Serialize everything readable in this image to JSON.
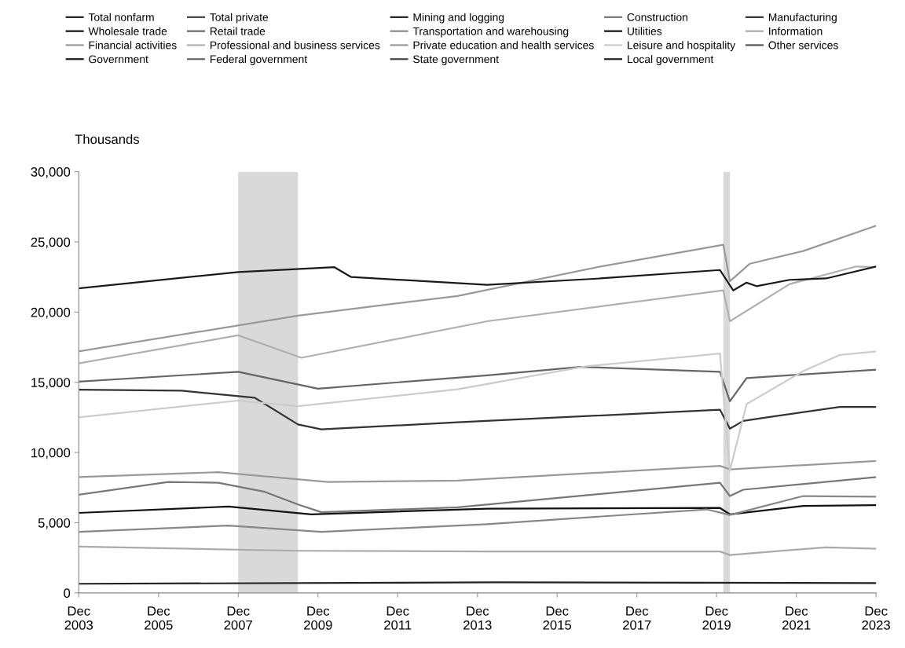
{
  "chart_data": {
    "type": "line",
    "ylabel": "Thousands",
    "xlim": [
      "2003-12",
      "2023-12"
    ],
    "xticks": [
      {
        "value": "2003-12",
        "label": "Dec\n2003"
      },
      {
        "value": "2005-12",
        "label": "Dec\n2005"
      },
      {
        "value": "2007-12",
        "label": "Dec\n2007"
      },
      {
        "value": "2009-12",
        "label": "Dec\n2009"
      },
      {
        "value": "2011-12",
        "label": "Dec\n2011"
      },
      {
        "value": "2013-12",
        "label": "Dec\n2013"
      },
      {
        "value": "2015-12",
        "label": "Dec\n2015"
      },
      {
        "value": "2017-12",
        "label": "Dec\n2017"
      },
      {
        "value": "2019-12",
        "label": "Dec\n2019"
      },
      {
        "value": "2021-12",
        "label": "Dec\n2021"
      },
      {
        "value": "2023-12",
        "label": "Dec\n2023"
      }
    ],
    "ylim": [
      0,
      30000
    ],
    "yticks": [
      {
        "value": 0,
        "label": "0"
      },
      {
        "value": 5000,
        "label": "5,000"
      },
      {
        "value": 10000,
        "label": "10,000"
      },
      {
        "value": 15000,
        "label": "15,000"
      },
      {
        "value": 20000,
        "label": "20,000"
      },
      {
        "value": 25000,
        "label": "25,000"
      },
      {
        "value": 30000,
        "label": "30,000"
      }
    ],
    "grid": false,
    "legend": "top",
    "bands": [
      {
        "axis": "x",
        "from": "2007-12",
        "to": "2009-06",
        "color": "#d9d9d9"
      },
      {
        "axis": "x",
        "from": "2020-02",
        "to": "2020-04",
        "color": "#d9d9d9"
      }
    ],
    "series": [
      {
        "name": "Total nonfarm",
        "color": "#222222"
      },
      {
        "name": "Total private",
        "color": "#444444"
      },
      {
        "name": "Mining and logging",
        "color": "#222222",
        "x": [
          "2003-12",
          "2014-06",
          "2023-12"
        ],
        "values": [
          650,
          750,
          700
        ]
      },
      {
        "name": "Construction",
        "color": "#777777",
        "x": [
          "2003-12",
          "2006-03",
          "2007-06",
          "2008-08",
          "2009-06",
          "2010-01",
          "2013-06",
          "2020-01",
          "2020-04",
          "2020-08",
          "2023-12"
        ],
        "values": [
          7000,
          7900,
          7850,
          7200,
          6300,
          5750,
          6100,
          7850,
          6900,
          7350,
          8250
        ]
      },
      {
        "name": "Manufacturing",
        "color": "#333333",
        "x": [
          "2003-12",
          "2006-07",
          "2008-05",
          "2009-06",
          "2010-01",
          "2013-06",
          "2020-01",
          "2020-04",
          "2020-08",
          "2021-06",
          "2023-01",
          "2023-12"
        ],
        "values": [
          14480,
          14400,
          13900,
          12000,
          11650,
          12150,
          13050,
          11700,
          12250,
          12600,
          13250,
          13250
        ]
      },
      {
        "name": "Wholesale trade",
        "color": "#111111",
        "x": [
          "2003-12",
          "2007-09",
          "2009-10",
          "2014-03",
          "2020-01",
          "2020-04",
          "2022-02",
          "2023-12"
        ],
        "values": [
          5700,
          6150,
          5600,
          6000,
          6050,
          5600,
          6200,
          6250
        ]
      },
      {
        "name": "Retail trade",
        "color": "#666666",
        "x": [
          "2003-12",
          "2007-12",
          "2009-12",
          "2014-03",
          "2016-07",
          "2020-01",
          "2020-04",
          "2020-09",
          "2023-12"
        ],
        "values": [
          15050,
          15750,
          14550,
          15500,
          16100,
          15750,
          13650,
          15300,
          15900
        ]
      },
      {
        "name": "Transportation and warehousing",
        "color": "#888888",
        "x": [
          "2003-12",
          "2007-09",
          "2010-01",
          "2014-03",
          "2019-09",
          "2020-04",
          "2022-02",
          "2023-12"
        ],
        "values": [
          4350,
          4800,
          4350,
          4900,
          5950,
          5550,
          6900,
          6850
        ]
      },
      {
        "name": "Utilities",
        "color": "#111111"
      },
      {
        "name": "Information",
        "color": "#aaaaaa",
        "x": [
          "2003-12",
          "2009-06",
          "2014-03",
          "2020-01",
          "2020-04",
          "2022-09",
          "2023-12"
        ],
        "values": [
          3300,
          3000,
          2950,
          2950,
          2700,
          3250,
          3150
        ]
      },
      {
        "name": "Financial activities",
        "color": "#999999",
        "x": [
          "2003-12",
          "2007-06",
          "2010-03",
          "2013-06",
          "2020-01",
          "2020-04",
          "2023-12"
        ],
        "values": [
          8250,
          8600,
          7900,
          8000,
          9050,
          8800,
          9400
        ]
      },
      {
        "name": "Professional and business services",
        "color": "#b0b0b0",
        "x": [
          "2003-12",
          "2007-12",
          "2009-07",
          "2014-03",
          "2020-02",
          "2020-04",
          "2021-10",
          "2023-06",
          "2023-12"
        ],
        "values": [
          16350,
          18350,
          16750,
          19350,
          21550,
          19350,
          22000,
          23250,
          23200
        ]
      },
      {
        "name": "Private education and health services",
        "color": "#999999",
        "x": [
          "2003-12",
          "2009-06",
          "2013-06",
          "2017-01",
          "2020-02",
          "2020-04",
          "2020-10",
          "2022-02",
          "2023-12"
        ],
        "values": [
          17200,
          19750,
          21150,
          23250,
          24800,
          22200,
          23450,
          24350,
          26150
        ]
      },
      {
        "name": "Leisure and hospitality",
        "color": "#cccccc",
        "x": [
          "2003-12",
          "2007-12",
          "2009-06",
          "2013-06",
          "2016-09",
          "2020-01",
          "2020-04",
          "2020-09",
          "2022-02",
          "2023-01",
          "2023-12"
        ],
        "values": [
          12500,
          13700,
          13300,
          14500,
          16150,
          17050,
          8700,
          13450,
          15800,
          16950,
          17200
        ]
      },
      {
        "name": "Other services",
        "color": "#555555"
      },
      {
        "name": "Government",
        "color": "#1a1a1a",
        "x": [
          "2003-12",
          "2007-12",
          "2010-05",
          "2010-10",
          "2014-03",
          "2017-01",
          "2020-01",
          "2020-05",
          "2020-09",
          "2020-12",
          "2021-10",
          "2022-09",
          "2023-12"
        ],
        "values": [
          21700,
          22850,
          23200,
          22500,
          21950,
          22400,
          23000,
          21550,
          22100,
          21850,
          22300,
          22400,
          23250
        ]
      },
      {
        "name": "Federal government",
        "color": "#666666"
      },
      {
        "name": "State government",
        "color": "#444444"
      },
      {
        "name": "Local government",
        "color": "#222222"
      }
    ]
  }
}
